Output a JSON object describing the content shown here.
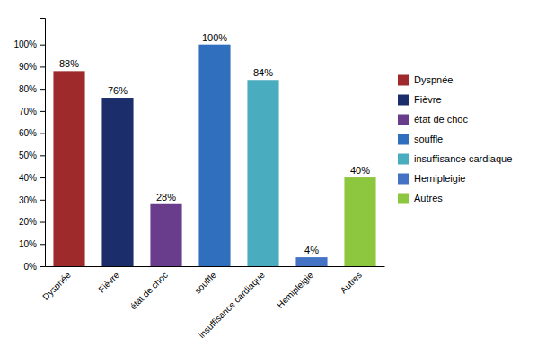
{
  "chart_data": {
    "type": "bar",
    "categories": [
      "Dyspnée",
      "Fièvre",
      "état de choc",
      "souffle",
      "insuffisance cardiaque",
      "Hemipleigie",
      "Autres"
    ],
    "values": [
      88,
      76,
      28,
      100,
      84,
      4,
      40
    ],
    "value_labels": [
      "88%",
      "76%",
      "28%",
      "100%",
      "84%",
      "4%",
      "40%"
    ],
    "colors": [
      "#9E2A2B",
      "#1C2D6B",
      "#6A3C8C",
      "#2F6FBD",
      "#4AACBF",
      "#4472C4",
      "#8DC63F"
    ],
    "ylim": [
      0,
      112
    ],
    "yticks": [
      {
        "value": 0,
        "label": "0%"
      },
      {
        "value": 10,
        "label": "10%"
      },
      {
        "value": 20,
        "label": "20%"
      },
      {
        "value": 30,
        "label": "30%"
      },
      {
        "value": 40,
        "label": "40%"
      },
      {
        "value": 50,
        "label": "50%"
      },
      {
        "value": 60,
        "label": "60%"
      },
      {
        "value": 70,
        "label": "70%"
      },
      {
        "value": 80,
        "label": "80%"
      },
      {
        "value": 90,
        "label": "90%"
      },
      {
        "value": 100,
        "label": "100%"
      }
    ],
    "grid": false,
    "data_labels": true,
    "legend": "right"
  }
}
